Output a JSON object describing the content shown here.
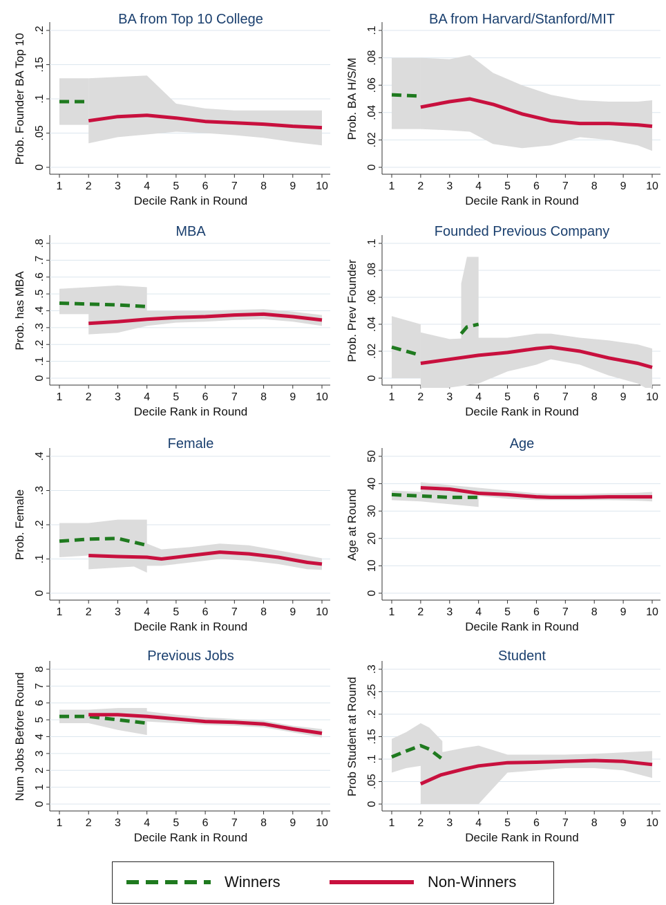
{
  "legend": {
    "winners_label": "Winners",
    "nonwinners_label": "Non-Winners"
  },
  "colors": {
    "winners": "#1f7a1f",
    "nonwinners": "#c8103e",
    "ci": "#dcdcdc",
    "grid": "#dce6ee",
    "title": "#1a3f6e"
  },
  "chart_data": [
    {
      "type": "line",
      "title": "BA from Top 10 College",
      "xlabel": "Decile Rank in Round",
      "ylabel": "Prob. Founder BA Top 10",
      "xlim": [
        1,
        10
      ],
      "xticks": [
        1,
        2,
        3,
        4,
        5,
        6,
        7,
        8,
        9,
        10
      ],
      "xtick_labels": [
        "1",
        "2",
        "3",
        "4",
        "5",
        "6",
        "7",
        "8",
        "9",
        "10"
      ],
      "ylim": [
        0,
        0.2
      ],
      "yticks": [
        0,
        0.05,
        0.1,
        0.15,
        0.2
      ],
      "ytick_labels": [
        "0",
        ".05",
        ".1",
        ".15",
        ".2"
      ],
      "grid": true,
      "series": [
        {
          "name": "Winners",
          "x": [
            1,
            2
          ],
          "y": [
            0.096,
            0.096
          ],
          "ci_lower": [
            0.062,
            0.062
          ],
          "ci_upper": [
            0.13,
            0.13
          ]
        },
        {
          "name": "Non-Winners",
          "x": [
            2,
            3,
            4,
            5,
            6,
            7,
            8,
            9,
            10
          ],
          "y": [
            0.068,
            0.074,
            0.076,
            0.072,
            0.067,
            0.065,
            0.063,
            0.06,
            0.058
          ],
          "ci_lower": [
            0.035,
            0.044,
            0.048,
            0.052,
            0.05,
            0.047,
            0.043,
            0.037,
            0.032
          ],
          "ci_upper": [
            0.13,
            0.132,
            0.134,
            0.093,
            0.086,
            0.083,
            0.083,
            0.083,
            0.083
          ]
        }
      ]
    },
    {
      "type": "line",
      "title": "BA from Harvard/Stanford/MIT",
      "xlabel": "Decile Rank in Round",
      "ylabel": "Prob. BA H/S/M",
      "xlim": [
        1,
        10
      ],
      "xticks": [
        1,
        2,
        3,
        4,
        5,
        6,
        7,
        8,
        9,
        10
      ],
      "xtick_labels": [
        "1",
        "2",
        "3",
        "4",
        "5",
        "6",
        "7",
        "8",
        "9",
        "10"
      ],
      "ylim": [
        0,
        0.1
      ],
      "yticks": [
        0,
        0.02,
        0.04,
        0.06,
        0.08,
        0.1
      ],
      "ytick_labels": [
        "0",
        ".02",
        ".04",
        ".06",
        ".08",
        ".1"
      ],
      "grid": true,
      "series": [
        {
          "name": "Winners",
          "x": [
            1,
            2
          ],
          "y": [
            0.053,
            0.052
          ],
          "ci_lower": [
            0.028,
            0.028
          ],
          "ci_upper": [
            0.08,
            0.08
          ]
        },
        {
          "name": "Non-Winners",
          "x": [
            2,
            3,
            3.7,
            4.5,
            5.5,
            6.5,
            7.5,
            8.5,
            9.5,
            10
          ],
          "y": [
            0.044,
            0.048,
            0.05,
            0.046,
            0.039,
            0.034,
            0.032,
            0.032,
            0.031,
            0.03
          ],
          "ci_lower": [
            0.028,
            0.027,
            0.026,
            0.017,
            0.014,
            0.016,
            0.022,
            0.02,
            0.016,
            0.012
          ],
          "ci_upper": [
            0.08,
            0.079,
            0.082,
            0.069,
            0.06,
            0.053,
            0.049,
            0.048,
            0.048,
            0.049
          ]
        }
      ]
    },
    {
      "type": "line",
      "title": "MBA",
      "xlabel": "Decile Rank in Round",
      "ylabel": "Prob. has MBA",
      "xlim": [
        1,
        10
      ],
      "xticks": [
        1,
        2,
        3,
        4,
        5,
        6,
        7,
        8,
        9,
        10
      ],
      "xtick_labels": [
        "1",
        "2",
        "3",
        "4",
        "5",
        "6",
        "7",
        "8",
        "9",
        "10"
      ],
      "ylim": [
        0,
        0.8
      ],
      "yticks": [
        0,
        0.1,
        0.2,
        0.3,
        0.4,
        0.5,
        0.6,
        0.7,
        0.8
      ],
      "ytick_labels": [
        "0",
        ".1",
        ".2",
        ".3",
        ".4",
        ".5",
        ".6",
        ".7",
        ".8"
      ],
      "grid": true,
      "series": [
        {
          "name": "Winners",
          "x": [
            1,
            2,
            3,
            4
          ],
          "y": [
            0.445,
            0.44,
            0.435,
            0.425
          ],
          "ci_lower": [
            0.38,
            0.38,
            0.38,
            0.37
          ],
          "ci_upper": [
            0.53,
            0.54,
            0.55,
            0.54
          ]
        },
        {
          "name": "Non-Winners",
          "x": [
            2,
            3,
            4,
            5,
            6,
            7,
            8,
            9,
            10
          ],
          "y": [
            0.325,
            0.335,
            0.35,
            0.36,
            0.365,
            0.375,
            0.38,
            0.365,
            0.345
          ],
          "ci_lower": [
            0.26,
            0.27,
            0.31,
            0.33,
            0.335,
            0.345,
            0.35,
            0.335,
            0.31
          ],
          "ci_upper": [
            0.38,
            0.4,
            0.4,
            0.4,
            0.4,
            0.405,
            0.41,
            0.395,
            0.375
          ]
        }
      ]
    },
    {
      "type": "line",
      "title": "Founded Previous Company",
      "xlabel": "Decile Rank in Round",
      "ylabel": "Prob. Prev Founder",
      "xlim": [
        1,
        10
      ],
      "xticks": [
        1,
        2,
        3,
        4,
        5,
        6,
        7,
        8,
        9,
        10
      ],
      "xtick_labels": [
        "1",
        "2",
        "3",
        "4",
        "5",
        "6",
        "7",
        "8",
        "9",
        "10"
      ],
      "ylim": [
        0,
        0.1
      ],
      "yticks": [
        0,
        0.02,
        0.04,
        0.06,
        0.08,
        0.1
      ],
      "ytick_labels": [
        "0",
        ".02",
        ".04",
        ".06",
        ".08",
        ".1"
      ],
      "grid": true,
      "series": [
        {
          "name": "Winners",
          "x": [
            1,
            2
          ],
          "y": [
            0.023,
            0.017
          ],
          "ci_lower": [
            0.0,
            0.0
          ],
          "ci_upper": [
            0.046,
            0.04
          ]
        },
        {
          "name": "Winners",
          "x": [
            3.4,
            3.6,
            4
          ],
          "y": [
            0.033,
            0.038,
            0.04
          ],
          "ci_lower": [
            0.0,
            0.0,
            0.0
          ],
          "ci_upper": [
            0.07,
            0.09,
            0.09
          ]
        },
        {
          "name": "Non-Winners",
          "x": [
            2,
            3,
            4,
            5,
            6,
            6.5,
            7.5,
            8.5,
            9.5,
            10
          ],
          "y": [
            0.011,
            0.014,
            0.017,
            0.019,
            0.022,
            0.023,
            0.02,
            0.015,
            0.011,
            0.008
          ],
          "ci_lower": [
            -0.012,
            -0.007,
            -0.004,
            0.005,
            0.01,
            0.014,
            0.01,
            0.002,
            -0.004,
            -0.01
          ],
          "ci_upper": [
            0.034,
            0.029,
            0.03,
            0.03,
            0.033,
            0.033,
            0.03,
            0.028,
            0.025,
            0.022
          ]
        }
      ]
    },
    {
      "type": "line",
      "title": "Female",
      "xlabel": "Decile Rank in Round",
      "ylabel": "Prob. Female",
      "xlim": [
        1,
        10
      ],
      "xticks": [
        1,
        2,
        3,
        4,
        5,
        6,
        7,
        8,
        9,
        10
      ],
      "xtick_labels": [
        "1",
        "2",
        "3",
        "4",
        "5",
        "6",
        "7",
        "8",
        "9",
        "10"
      ],
      "ylim": [
        0,
        0.4
      ],
      "yticks": [
        0,
        0.1,
        0.2,
        0.3,
        0.4
      ],
      "ytick_labels": [
        "0",
        ".1",
        ".2",
        ".3",
        ".4"
      ],
      "grid": true,
      "series": [
        {
          "name": "Winners",
          "x": [
            1,
            2,
            3,
            4
          ],
          "y": [
            0.152,
            0.158,
            0.16,
            0.14
          ],
          "ci_lower": [
            0.105,
            0.11,
            0.1,
            0.06
          ],
          "ci_upper": [
            0.205,
            0.205,
            0.215,
            0.215
          ]
        },
        {
          "name": "Non-Winners",
          "x": [
            2,
            3,
            4,
            4.5,
            5.5,
            6.5,
            7.5,
            8.5,
            9.5,
            10
          ],
          "y": [
            0.11,
            0.107,
            0.105,
            0.1,
            0.11,
            0.12,
            0.115,
            0.105,
            0.09,
            0.085
          ],
          "ci_lower": [
            0.07,
            0.075,
            0.08,
            0.08,
            0.09,
            0.1,
            0.095,
            0.085,
            0.07,
            0.068
          ],
          "ci_upper": [
            0.16,
            0.155,
            0.145,
            0.128,
            0.135,
            0.145,
            0.14,
            0.125,
            0.11,
            0.102
          ]
        }
      ]
    },
    {
      "type": "line",
      "title": "Age",
      "xlabel": "Decile Rank in Round",
      "ylabel": "Age at Round",
      "xlim": [
        1,
        10
      ],
      "xticks": [
        1,
        2,
        3,
        4,
        5,
        6,
        7,
        8,
        9,
        10
      ],
      "xtick_labels": [
        "1",
        "2",
        "3",
        "4",
        "5",
        "6",
        "7",
        "8",
        "9",
        "10"
      ],
      "ylim": [
        0,
        50
      ],
      "yticks": [
        0,
        10,
        20,
        30,
        40,
        50
      ],
      "ytick_labels": [
        "0",
        "10",
        "20",
        "30",
        "40",
        "50"
      ],
      "grid": true,
      "series": [
        {
          "name": "Winners",
          "x": [
            1,
            2,
            3,
            4
          ],
          "y": [
            36,
            35.5,
            35,
            35
          ],
          "ci_lower": [
            34,
            33.5,
            32.5,
            31.5
          ],
          "ci_upper": [
            37.5,
            37,
            37,
            37.5
          ]
        },
        {
          "name": "Non-Winners",
          "x": [
            2,
            3,
            4,
            5,
            6,
            6.5,
            7.5,
            8.5,
            9.5,
            10
          ],
          "y": [
            38.5,
            38,
            36.5,
            36,
            35.2,
            35,
            35,
            35.2,
            35.2,
            35.2
          ],
          "ci_lower": [
            36.5,
            36.5,
            35.5,
            34.5,
            34,
            34,
            34,
            34,
            33.8,
            33.5
          ],
          "ci_upper": [
            40.5,
            39.5,
            38.5,
            37.5,
            36.5,
            36.3,
            36.3,
            36.5,
            36.7,
            37
          ]
        }
      ]
    },
    {
      "type": "line",
      "title": "Previous Jobs",
      "xlabel": "Decile Rank in Round",
      "ylabel": "Num Jobs Before Round",
      "xlim": [
        1,
        10
      ],
      "xticks": [
        1,
        2,
        3,
        4,
        5,
        6,
        7,
        8,
        9,
        10
      ],
      "xtick_labels": [
        "1",
        "2",
        "3",
        "4",
        "5",
        "6",
        "7",
        "8",
        "9",
        "10"
      ],
      "ylim": [
        0,
        8
      ],
      "yticks": [
        0,
        1,
        2,
        3,
        4,
        5,
        6,
        7,
        8
      ],
      "ytick_labels": [
        "0",
        "1",
        "2",
        "3",
        "4",
        "5",
        "6",
        "7",
        "8"
      ],
      "grid": true,
      "series": [
        {
          "name": "Winners",
          "x": [
            1,
            2,
            3,
            4
          ],
          "y": [
            5.2,
            5.2,
            5,
            4.8
          ],
          "ci_lower": [
            4.8,
            4.8,
            4.4,
            4.1
          ],
          "ci_upper": [
            5.6,
            5.6,
            5.7,
            5.7
          ]
        },
        {
          "name": "Non-Winners",
          "x": [
            2,
            3,
            4,
            5,
            6,
            7,
            8,
            9,
            10
          ],
          "y": [
            5.3,
            5.3,
            5.2,
            5.05,
            4.9,
            4.85,
            4.75,
            4.45,
            4.2
          ],
          "ci_lower": [
            5.0,
            5.0,
            4.9,
            4.8,
            4.7,
            4.65,
            4.55,
            4.25,
            3.95
          ],
          "ci_upper": [
            5.6,
            5.6,
            5.5,
            5.3,
            5.15,
            5.05,
            4.95,
            4.65,
            4.45
          ]
        }
      ]
    },
    {
      "type": "line",
      "title": "Student",
      "xlabel": "Decile Rank in Round",
      "ylabel": "Prob Student at Round",
      "xlim": [
        1,
        10
      ],
      "xticks": [
        1,
        2,
        3,
        4,
        5,
        6,
        7,
        8,
        9,
        10
      ],
      "xtick_labels": [
        "1",
        "2",
        "3",
        "4",
        "5",
        "6",
        "7",
        "8",
        "9",
        "10"
      ],
      "ylim": [
        0,
        0.3
      ],
      "yticks": [
        0,
        0.05,
        0.1,
        0.15,
        0.2,
        0.25,
        0.3
      ],
      "ytick_labels": [
        "0",
        ".05",
        ".1",
        ".15",
        ".2",
        ".25",
        ".3"
      ],
      "grid": true,
      "series": [
        {
          "name": "Winners",
          "x": [
            1,
            1.5,
            2,
            2.3,
            2.75
          ],
          "y": [
            0.105,
            0.118,
            0.13,
            0.122,
            0.1
          ],
          "ci_lower": [
            0.07,
            0.08,
            0.085,
            0.06,
            0.03
          ],
          "ci_upper": [
            0.145,
            0.16,
            0.18,
            0.17,
            0.14
          ]
        },
        {
          "name": "Non-Winners",
          "x": [
            2,
            2.7,
            3.5,
            4,
            5,
            6,
            7,
            8,
            9,
            10
          ],
          "y": [
            0.045,
            0.065,
            0.078,
            0.085,
            0.092,
            0.093,
            0.095,
            0.097,
            0.095,
            0.088
          ],
          "ci_lower": [
            0.0,
            0.0,
            0.0,
            0.0,
            0.07,
            0.075,
            0.08,
            0.08,
            0.075,
            0.058
          ],
          "ci_upper": [
            0.12,
            0.115,
            0.125,
            0.13,
            0.11,
            0.11,
            0.11,
            0.112,
            0.115,
            0.118
          ]
        }
      ]
    }
  ]
}
